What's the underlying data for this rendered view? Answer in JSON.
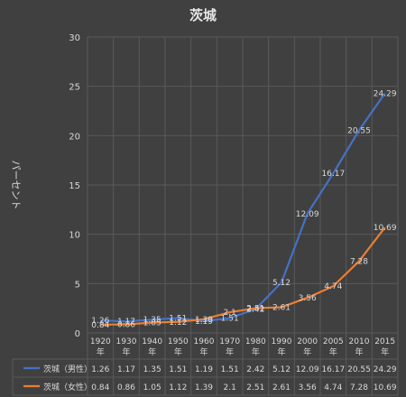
{
  "chart_data": {
    "type": "line",
    "title": "茨城",
    "ylabel": "パーセント",
    "xlabel": "",
    "ylim": [
      0,
      30
    ],
    "yticks": [
      0,
      5,
      10,
      15,
      20,
      25,
      30
    ],
    "grid": true,
    "legend": "bottom-table",
    "categories": [
      "1920",
      "1930",
      "1940",
      "1950",
      "1960",
      "1970",
      "1980",
      "1990",
      "2000",
      "2005",
      "2010",
      "2015"
    ],
    "category_suffix": "年",
    "series": [
      {
        "name": "茨城（男性）",
        "color": "#4472c4",
        "values": [
          1.26,
          1.17,
          1.35,
          1.51,
          1.19,
          1.51,
          2.42,
          5.12,
          12.09,
          16.17,
          20.55,
          24.29
        ],
        "labels": [
          "1.26",
          "1.17",
          "1.35",
          "1.51",
          "1.19",
          "1.51",
          "2.42",
          "5.12",
          "12.09",
          "16.17",
          "20.55",
          "24.29"
        ]
      },
      {
        "name": "茨城（女性）",
        "color": "#ed7d31",
        "values": [
          0.84,
          0.86,
          1.05,
          1.12,
          1.39,
          2.1,
          2.51,
          2.61,
          3.56,
          4.74,
          7.28,
          10.69
        ],
        "labels": [
          "0.84",
          "0.86",
          "1.05",
          "1.12",
          "1.39",
          "2.1",
          "2.51",
          "2.61",
          "3.56",
          "4.74",
          "7.28",
          "10.69"
        ]
      }
    ]
  }
}
